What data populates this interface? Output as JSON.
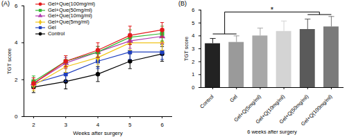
{
  "chart_data": [
    {
      "type": "line",
      "title": "(A)",
      "x_label": "Weeks after surgery",
      "y_label": "TGT score",
      "x": [
        2,
        3,
        4,
        5,
        6
      ],
      "xlim": [
        1.7,
        6.3
      ],
      "xticks": [
        2,
        3,
        4,
        5,
        6
      ],
      "ylim": [
        0,
        6
      ],
      "yticks": [
        0,
        2,
        4,
        6
      ],
      "grid": false,
      "legend": "top-left",
      "series": [
        {
          "name": "Gel+Que(100mg/ml)",
          "color": "#e41a1c",
          "marker": "circle",
          "values": [
            1.8,
            3.0,
            3.6,
            4.4,
            4.7
          ],
          "errors": [
            0.3,
            0.3,
            0.4,
            0.5,
            0.4
          ]
        },
        {
          "name": "Gel+Que(50mg/ml)",
          "color": "#33b833",
          "marker": "square",
          "values": [
            1.9,
            3.0,
            3.5,
            4.3,
            4.5
          ],
          "errors": [
            0.3,
            0.3,
            0.3,
            0.4,
            0.4
          ]
        },
        {
          "name": "Gel+Que(10mg/ml)",
          "color": "#b03cb0",
          "marker": "triangle",
          "values": [
            1.8,
            2.9,
            3.5,
            4.1,
            4.35
          ],
          "errors": [
            0.3,
            0.3,
            0.3,
            0.4,
            0.4
          ]
        },
        {
          "name": "Gel+Que(5mg/ml)",
          "color": "#f0c419",
          "marker": "diamond",
          "values": [
            1.7,
            2.7,
            3.2,
            4.0,
            4.0
          ],
          "errors": [
            0.3,
            0.3,
            0.4,
            0.4,
            0.4
          ]
        },
        {
          "name": "Gel",
          "color": "#1f3fbf",
          "marker": "square",
          "values": [
            1.8,
            2.3,
            3.0,
            3.5,
            3.5
          ],
          "errors": [
            0.3,
            0.4,
            0.4,
            0.4,
            0.4
          ]
        },
        {
          "name": "Control",
          "color": "#000000",
          "marker": "circle",
          "values": [
            1.6,
            1.9,
            2.3,
            3.0,
            3.4
          ],
          "errors": [
            0.3,
            0.4,
            0.4,
            0.4,
            0.4
          ]
        }
      ]
    },
    {
      "type": "bar",
      "title": "(B)",
      "x_label": "6 weeks after surgery",
      "y_label": "TGT score",
      "categories": [
        "Control",
        "Gel",
        "Gel+Q(5mg/ml)",
        "Gel+Q(10mg/ml)",
        "Gel+Q(50mg/ml)",
        "Gel+Q(100mg/ml)"
      ],
      "values": [
        3.4,
        3.5,
        4.0,
        4.35,
        4.5,
        4.7
      ],
      "errors": [
        0.4,
        0.5,
        0.6,
        0.8,
        0.8,
        0.8
      ],
      "colors": [
        "#222222",
        "#9a9a9a",
        "#a8a8a8",
        "#d4d4d4",
        "#5a5a5a",
        "#7a7a7a"
      ],
      "ylim": [
        0,
        6
      ],
      "yticks": [
        0,
        1,
        2,
        3,
        4,
        5,
        6
      ],
      "grid": false,
      "annotations": [
        {
          "text": "*",
          "from": [
            "Control",
            "Gel"
          ],
          "to": [
            "Gel+Q(50mg/ml)",
            "Gel+Q(100mg/ml)"
          ]
        }
      ]
    }
  ]
}
